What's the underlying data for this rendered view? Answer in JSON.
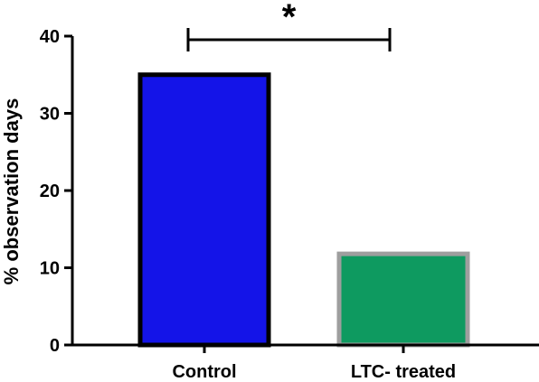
{
  "chart_data": {
    "type": "bar",
    "categories": [
      "Control",
      "LTC- treated"
    ],
    "values": [
      35,
      11.8
    ],
    "ylabel": "% observation days",
    "xlabel": "",
    "ylim": [
      0,
      40
    ],
    "yticks": [
      0,
      10,
      20,
      30,
      40
    ],
    "bar_fill": [
      "#1414e8",
      "#0e9a60"
    ],
    "bar_stroke": [
      "#000000",
      "#9e9e9e"
    ],
    "significance": {
      "label": "*",
      "between": [
        "Control",
        "LTC- treated"
      ]
    }
  }
}
